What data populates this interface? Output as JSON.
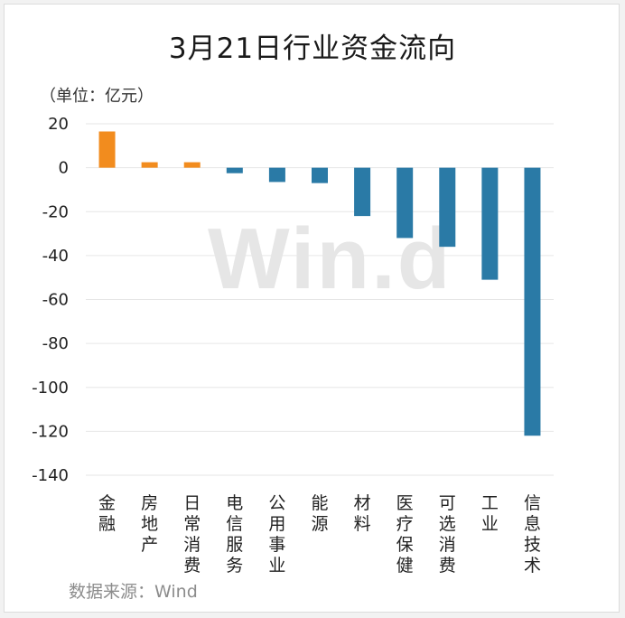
{
  "header": {
    "title": "3月21日行业资金流向"
  },
  "unit_label": "（单位：亿元）",
  "source_label": "数据来源：Wind",
  "watermark_text": "Win.d",
  "colors": {
    "positive": "#F28C1E",
    "negative": "#2A7AA6",
    "grid": "#e6e6e6",
    "axis_text": "#222222"
  },
  "chart_data": {
    "type": "bar",
    "title": "3月21日行业资金流向",
    "xlabel": "",
    "ylabel": "（单位：亿元）",
    "ylim": [
      -140,
      20
    ],
    "yticks": [
      20,
      0,
      -20,
      -40,
      -60,
      -80,
      -100,
      -120,
      -140
    ],
    "grid": true,
    "categories": [
      "金融",
      "房地产",
      "日常消费",
      "电信服务",
      "公用事业",
      "能源",
      "材料",
      "医疗保健",
      "可选消费",
      "工业",
      "信息技术"
    ],
    "values": [
      16.5,
      2.5,
      2.5,
      -2.5,
      -6.5,
      -7,
      -22,
      -32,
      -36,
      -51,
      -122
    ]
  }
}
